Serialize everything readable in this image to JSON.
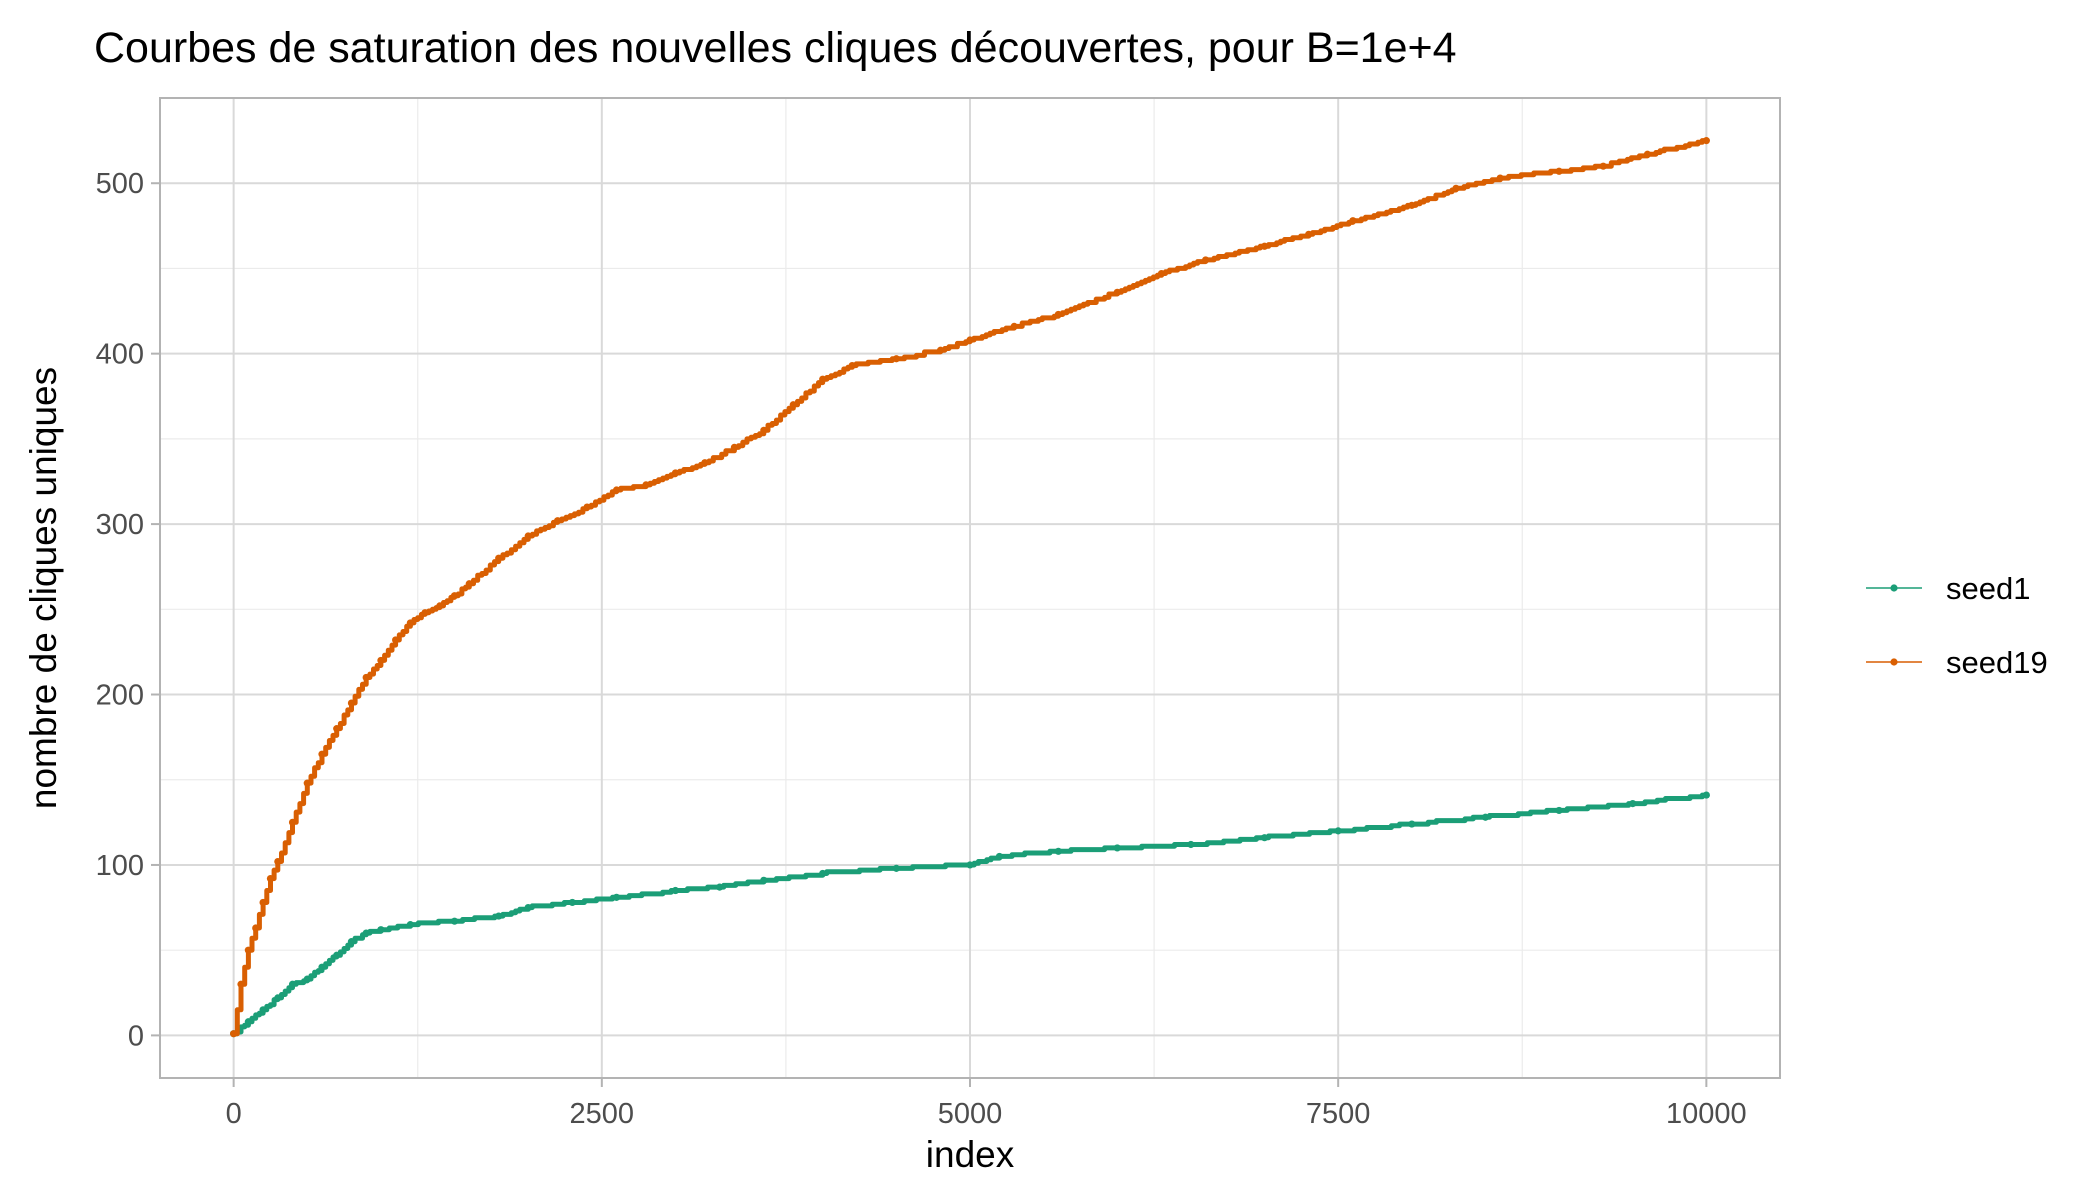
{
  "chart_data": {
    "type": "line",
    "title": "Courbes de saturation des nouvelles cliques découvertes, pour B=1e+4",
    "xlabel": "index",
    "ylabel": "nombre de cliques uniques",
    "xlim": [
      -500,
      10500
    ],
    "ylim": [
      -25,
      550
    ],
    "x_ticks": [
      0,
      2500,
      5000,
      7500,
      10000
    ],
    "x_tick_labels": [
      "0",
      "2500",
      "5000",
      "7500",
      "10000"
    ],
    "y_ticks": [
      0,
      100,
      200,
      300,
      400,
      500
    ],
    "y_tick_labels": [
      "0",
      "100",
      "200",
      "300",
      "400",
      "500"
    ],
    "grid": true,
    "legend_position": "right",
    "series": [
      {
        "name": "seed1",
        "color": "#1b9e77",
        "x": [
          0,
          100,
          200,
          300,
          400,
          500,
          600,
          700,
          800,
          900,
          1000,
          1200,
          1500,
          1800,
          2000,
          2300,
          2600,
          3000,
          3300,
          3600,
          4000,
          4500,
          5000,
          5200,
          5600,
          6000,
          6500,
          7000,
          7500,
          8000,
          8500,
          9000,
          9500,
          10000
        ],
        "y": [
          1,
          8,
          15,
          22,
          30,
          33,
          40,
          47,
          55,
          60,
          62,
          65,
          67,
          70,
          75,
          78,
          81,
          85,
          87,
          91,
          95,
          98,
          100,
          105,
          108,
          110,
          112,
          116,
          120,
          124,
          128,
          132,
          136,
          141
        ]
      },
      {
        "name": "seed19",
        "color": "#d95f02",
        "x": [
          0,
          50,
          100,
          150,
          200,
          250,
          300,
          400,
          500,
          600,
          700,
          800,
          900,
          1000,
          1100,
          1200,
          1300,
          1400,
          1500,
          1600,
          1800,
          2000,
          2200,
          2400,
          2600,
          2800,
          3000,
          3200,
          3400,
          3600,
          3800,
          4000,
          4200,
          4500,
          4800,
          5000,
          5300,
          5600,
          6000,
          6300,
          6600,
          7000,
          7300,
          7600,
          8000,
          8300,
          8600,
          9000,
          9300,
          9600,
          10000
        ],
        "y": [
          1,
          30,
          50,
          63,
          78,
          92,
          102,
          125,
          148,
          165,
          180,
          195,
          210,
          220,
          232,
          242,
          248,
          252,
          258,
          265,
          280,
          293,
          302,
          310,
          320,
          323,
          330,
          336,
          345,
          355,
          370,
          385,
          393,
          397,
          402,
          408,
          416,
          423,
          436,
          447,
          455,
          463,
          470,
          478,
          487,
          497,
          503,
          507,
          510,
          517,
          525
        ]
      }
    ]
  }
}
